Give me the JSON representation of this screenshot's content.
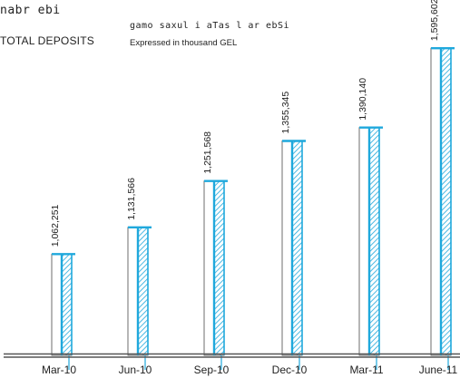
{
  "header": {
    "title_ka": "nabr ebi",
    "title_en": "TOTAL DEPOSITS",
    "note_ka": "gamo saxul i aTas l ar ebSi",
    "note_en": "Expressed in thousand GEL"
  },
  "chart_data": {
    "type": "bar",
    "title": "TOTAL DEPOSITS",
    "subtitle": "Expressed in thousand GEL",
    "categories": [
      "Mar-10",
      "Jun-10",
      "Sep-10",
      "Dec-10",
      "Mar-11",
      "June-11"
    ],
    "values": [
      1062251,
      1131566,
      1251568,
      1355345,
      1390140,
      1595602
    ],
    "value_labels": [
      "1,062,251",
      "1,131,566",
      "1,251,568",
      "1,355,345",
      "1,390,140",
      "1,595,602"
    ],
    "xlabel": "",
    "ylabel": "",
    "ylim": [
      800000,
      1650000
    ],
    "grid": false,
    "legend": "none",
    "colors": {
      "bar": "#1fa8dc",
      "outline": "#4a4a4a",
      "axis": "#555555"
    }
  }
}
